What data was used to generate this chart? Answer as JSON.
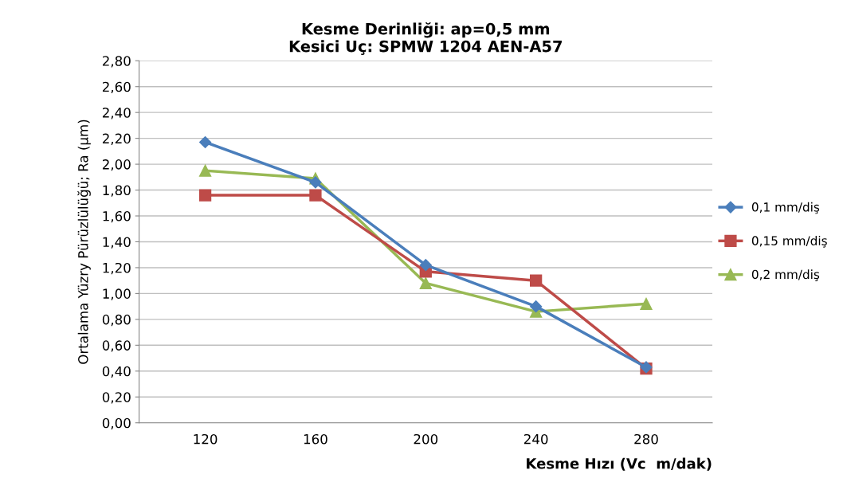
{
  "chart_data": {
    "type": "line",
    "title": "Kesme Derinliği: ap=0,5 mm\nKesici Uç: SPMW 1204 AEN-A57",
    "xlabel": "Kesme Hızı (Vc  m/dak)",
    "ylabel": "Ortalama Yüzry Pürüzlülüğü; Ra (µm)",
    "categories": [
      "120",
      "160",
      "200",
      "240",
      "280"
    ],
    "series": [
      {
        "name": "0,1 mm/diş",
        "color": "#4a7ebb",
        "marker": "diamond",
        "values": [
          2.17,
          1.86,
          1.22,
          0.9,
          0.43
        ]
      },
      {
        "name": "0,15 mm/diş",
        "color": "#be4b48",
        "marker": "square",
        "values": [
          1.76,
          1.76,
          1.17,
          1.1,
          0.42
        ]
      },
      {
        "name": "0,2 mm/diş",
        "color": "#98b954",
        "marker": "triangle",
        "values": [
          1.95,
          1.89,
          1.08,
          0.86,
          0.92
        ]
      }
    ],
    "ylim": [
      0,
      2.8
    ],
    "yticks": [
      {
        "value": 0,
        "label": "0,00"
      },
      {
        "value": 0.2,
        "label": "0,20"
      },
      {
        "value": 0.4,
        "label": "0,40"
      },
      {
        "value": 0.6,
        "label": "0,60"
      },
      {
        "value": 0.8,
        "label": "0,80"
      },
      {
        "value": 1.0,
        "label": "1,00"
      },
      {
        "value": 1.2,
        "label": "1,20"
      },
      {
        "value": 1.4,
        "label": "1,40"
      },
      {
        "value": 1.6,
        "label": "1,60"
      },
      {
        "value": 1.8,
        "label": "1,80"
      },
      {
        "value": 2.0,
        "label": "2,00"
      },
      {
        "value": 2.2,
        "label": "2,20"
      },
      {
        "value": 2.4,
        "label": "2,40"
      },
      {
        "value": 2.6,
        "label": "2,60"
      },
      {
        "value": 2.8,
        "label": "2,80"
      }
    ],
    "grid": "y",
    "legend": "right"
  }
}
